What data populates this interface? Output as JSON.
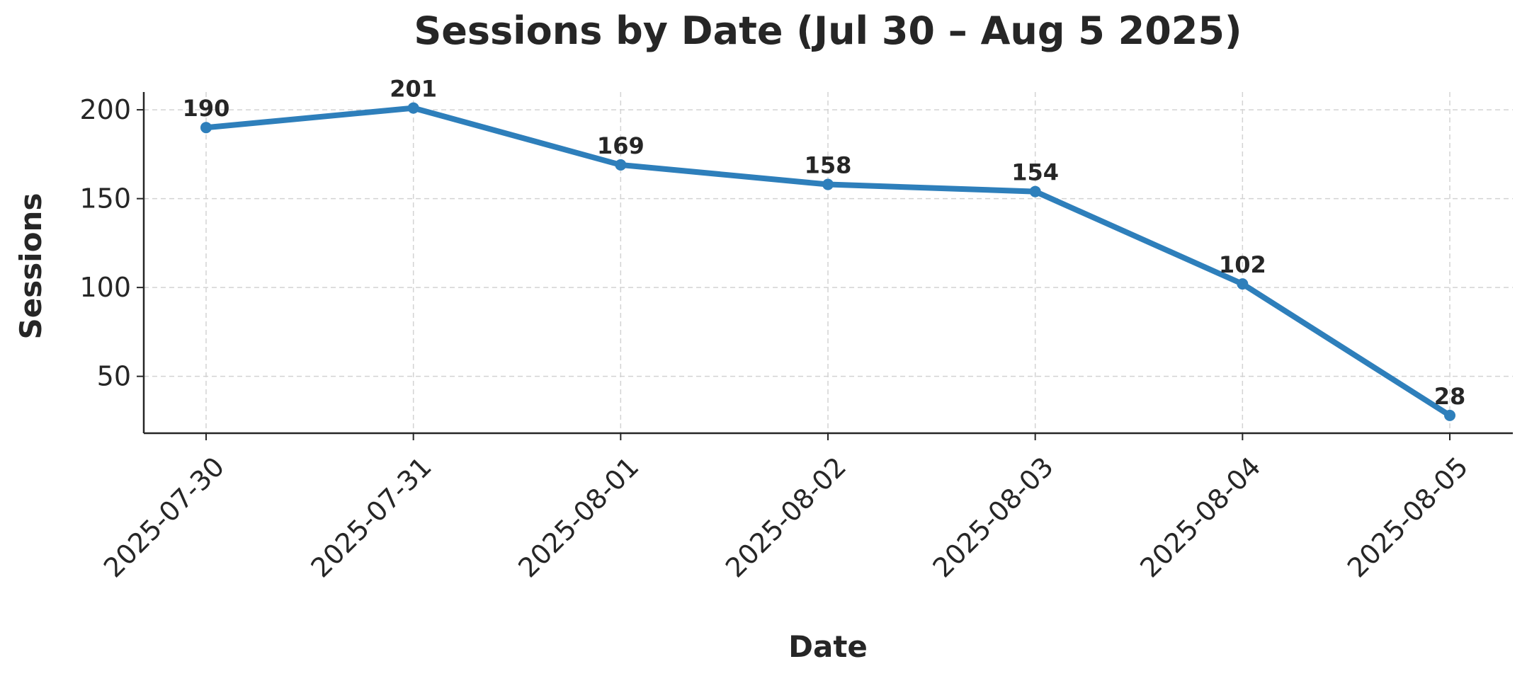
{
  "chart_data": {
    "type": "line",
    "title": "Sessions by Date (Jul 30 – Aug 5 2025)",
    "xlabel": "Date",
    "ylabel": "Sessions",
    "categories": [
      "2025-07-30",
      "2025-07-31",
      "2025-08-01",
      "2025-08-02",
      "2025-08-03",
      "2025-08-04",
      "2025-08-05"
    ],
    "series": [
      {
        "values": [
          190,
          201,
          169,
          158,
          154,
          102,
          28
        ],
        "color": "#2e7fbb"
      }
    ],
    "yticks": [
      50,
      100,
      150,
      200
    ],
    "ylim": [
      18,
      210
    ],
    "grid": true,
    "legend": "none",
    "markers": true,
    "data_labels": true
  }
}
